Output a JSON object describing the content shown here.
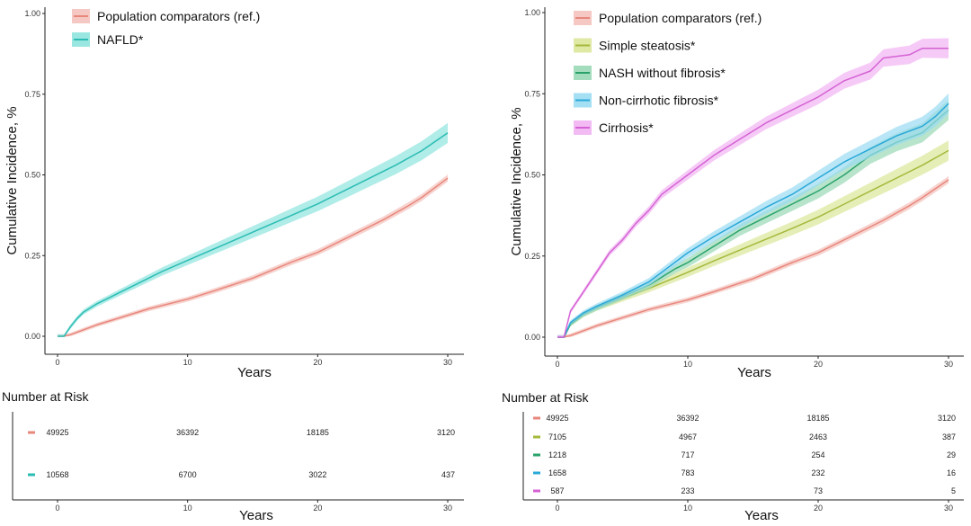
{
  "chart_data": [
    {
      "type": "line",
      "title": "",
      "xlabel": "Years",
      "ylabel": "Cumulative Incidence, %",
      "xlim": [
        0,
        31
      ],
      "ylim": [
        0,
        1.0
      ],
      "xticks": [
        "0",
        "10",
        "20",
        "30"
      ],
      "yticks": [
        "0.00",
        "0.25",
        "0.50",
        "0.75",
        "1.00"
      ],
      "legend_position": "top-left",
      "series": [
        {
          "name": "Population comparators (ref.)",
          "color": "#e8877c",
          "band": "#f4c2bc",
          "x": [
            0,
            0.5,
            1,
            2,
            3,
            5,
            7,
            10,
            12,
            15,
            18,
            20,
            22,
            25,
            27,
            28,
            30
          ],
          "y": [
            0,
            0,
            0.005,
            0.02,
            0.035,
            0.06,
            0.085,
            0.115,
            0.14,
            0.18,
            0.23,
            0.26,
            0.3,
            0.36,
            0.405,
            0.43,
            0.49
          ]
        },
        {
          "name": "NAFLD*",
          "color": "#2bbcb3",
          "band": "#8fe4de",
          "x": [
            0,
            0.5,
            1,
            1.5,
            2,
            3,
            4,
            5,
            6,
            8,
            10,
            12,
            14,
            16,
            18,
            20,
            22,
            24,
            26,
            28,
            30
          ],
          "y": [
            0,
            0,
            0.03,
            0.055,
            0.075,
            0.1,
            0.12,
            0.14,
            0.16,
            0.2,
            0.235,
            0.27,
            0.305,
            0.34,
            0.375,
            0.41,
            0.45,
            0.49,
            0.53,
            0.575,
            0.63
          ]
        }
      ],
      "risk_table": {
        "title": "Number at Risk",
        "xlabel": "Years",
        "times": [
          0,
          10,
          20,
          30
        ],
        "xticks": [
          "0",
          "10",
          "20",
          "30"
        ],
        "rows": [
          {
            "color": "#e8877c",
            "values": [
              "49925",
              "36392",
              "18185",
              "3120"
            ]
          },
          {
            "color": "#2bbcb3",
            "values": [
              "10568",
              "6700",
              "3022",
              "437"
            ]
          }
        ]
      }
    },
    {
      "type": "line",
      "title": "",
      "xlabel": "Years",
      "ylabel": "Cumulative Incidence, %",
      "xlim": [
        0,
        31
      ],
      "ylim": [
        0,
        1.0
      ],
      "xticks": [
        "0",
        "10",
        "20",
        "30"
      ],
      "yticks": [
        "0.00",
        "0.25",
        "0.50",
        "0.75",
        "1.00"
      ],
      "legend_position": "top-left",
      "series": [
        {
          "name": "Population comparators (ref.)",
          "color": "#e8877c",
          "band": "#f4c2bc",
          "x": [
            0,
            0.5,
            1,
            2,
            3,
            5,
            7,
            10,
            12,
            15,
            18,
            20,
            22,
            25,
            27,
            28,
            30
          ],
          "y": [
            0,
            0,
            0.005,
            0.02,
            0.035,
            0.06,
            0.085,
            0.115,
            0.14,
            0.18,
            0.23,
            0.26,
            0.3,
            0.36,
            0.405,
            0.43,
            0.485
          ]
        },
        {
          "name": "Simple steatosis*",
          "color": "#a5b83b",
          "band": "#dce79a",
          "x": [
            0,
            0.5,
            1,
            2,
            3,
            5,
            7,
            10,
            12,
            15,
            18,
            20,
            22,
            25,
            28,
            30
          ],
          "y": [
            0,
            0,
            0.04,
            0.07,
            0.09,
            0.12,
            0.15,
            0.2,
            0.235,
            0.285,
            0.335,
            0.37,
            0.41,
            0.47,
            0.53,
            0.575
          ]
        },
        {
          "name": "NASH without fibrosis*",
          "color": "#2aa36b",
          "band": "#9ad9b6",
          "x": [
            0,
            0.5,
            1,
            2,
            3,
            5,
            7,
            9,
            10,
            12,
            14,
            16,
            18,
            20,
            22,
            24,
            26,
            28,
            30
          ],
          "y": [
            0,
            0,
            0.04,
            0.07,
            0.09,
            0.125,
            0.16,
            0.21,
            0.23,
            0.28,
            0.33,
            0.37,
            0.41,
            0.45,
            0.5,
            0.56,
            0.6,
            0.63,
            0.7
          ]
        },
        {
          "name": "Non-cirrhotic fibrosis*",
          "color": "#2aa8d8",
          "band": "#9adcf2",
          "x": [
            0,
            0.5,
            1,
            2,
            3,
            5,
            7,
            8,
            10,
            12,
            14,
            16,
            18,
            20,
            22,
            24,
            26,
            28,
            29,
            30
          ],
          "y": [
            0,
            0,
            0.045,
            0.075,
            0.095,
            0.13,
            0.17,
            0.2,
            0.26,
            0.31,
            0.355,
            0.4,
            0.44,
            0.49,
            0.54,
            0.58,
            0.62,
            0.65,
            0.68,
            0.72
          ]
        },
        {
          "name": "Cirrhosis*",
          "color": "#d462d4",
          "band": "#f2b4f2",
          "x": [
            0,
            0.5,
            1,
            2,
            3,
            4,
            5,
            6,
            7,
            8,
            10,
            12,
            14,
            16,
            18,
            20,
            22,
            24,
            25,
            27,
            28,
            30
          ],
          "y": [
            0,
            0,
            0.08,
            0.14,
            0.2,
            0.26,
            0.3,
            0.35,
            0.39,
            0.44,
            0.5,
            0.56,
            0.61,
            0.66,
            0.7,
            0.74,
            0.79,
            0.82,
            0.86,
            0.87,
            0.89,
            0.89
          ]
        }
      ],
      "risk_table": {
        "title": "Number at Risk",
        "xlabel": "Years",
        "times": [
          0,
          10,
          20,
          30
        ],
        "xticks": [
          "0",
          "10",
          "20",
          "30"
        ],
        "rows": [
          {
            "color": "#e8877c",
            "values": [
              "49925",
              "36392",
              "18185",
              "3120"
            ]
          },
          {
            "color": "#a5b83b",
            "values": [
              "7105",
              "4967",
              "2463",
              "387"
            ]
          },
          {
            "color": "#2aa36b",
            "values": [
              "1218",
              "717",
              "254",
              "29"
            ]
          },
          {
            "color": "#2aa8d8",
            "values": [
              "1658",
              "783",
              "232",
              "16"
            ]
          },
          {
            "color": "#d462d4",
            "values": [
              "587",
              "233",
              "73",
              "5"
            ]
          }
        ]
      }
    }
  ]
}
